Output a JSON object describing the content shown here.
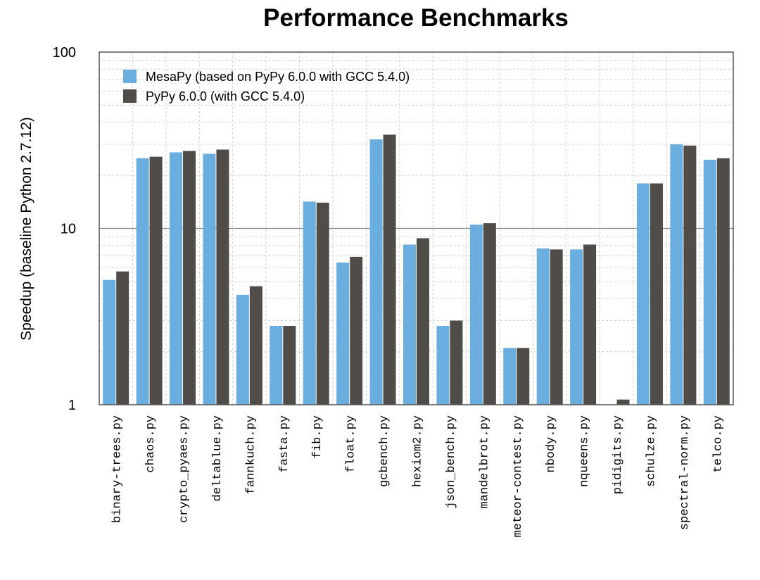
{
  "chart_data": {
    "type": "bar",
    "title": "Performance Benchmarks",
    "ylabel": "Speedup (baseline Python 2.7.12)",
    "xlabel": "",
    "yscale": "log",
    "ylim": [
      1,
      100
    ],
    "yticks": [
      "1",
      "10",
      "100"
    ],
    "grid": "dashed",
    "legend_position": "top-left",
    "categories": [
      "binary-trees.py",
      "chaos.py",
      "crypto_pyaes.py",
      "deltablue.py",
      "fannkuch.py",
      "fasta.py",
      "fib.py",
      "float.py",
      "gcbench.py",
      "hexiom2.py",
      "json_bench.py",
      "mandelbrot.py",
      "meteor-contest.py",
      "nbody.py",
      "nqueens.py",
      "pidigits.py",
      "schulze.py",
      "spectral-norm.py",
      "telco.py"
    ],
    "series": [
      {
        "name": "MesaPy (based on PyPy 6.0.0 with GCC 5.4.0)",
        "color": "#6aaee0",
        "values": [
          5.1,
          25.0,
          27.0,
          26.5,
          4.2,
          2.8,
          14.2,
          6.4,
          32.0,
          8.1,
          2.8,
          10.5,
          2.1,
          7.7,
          7.6,
          1.0,
          18.0,
          30.0,
          24.5
        ]
      },
      {
        "name": "PyPy 6.0.0 (with GCC 5.4.0)",
        "color": "#504c47",
        "values": [
          5.7,
          25.5,
          27.5,
          28.0,
          4.7,
          2.8,
          14.0,
          6.9,
          34.0,
          8.8,
          3.0,
          10.7,
          2.1,
          7.6,
          8.1,
          1.07,
          18.0,
          29.5,
          25.0
        ]
      }
    ]
  }
}
